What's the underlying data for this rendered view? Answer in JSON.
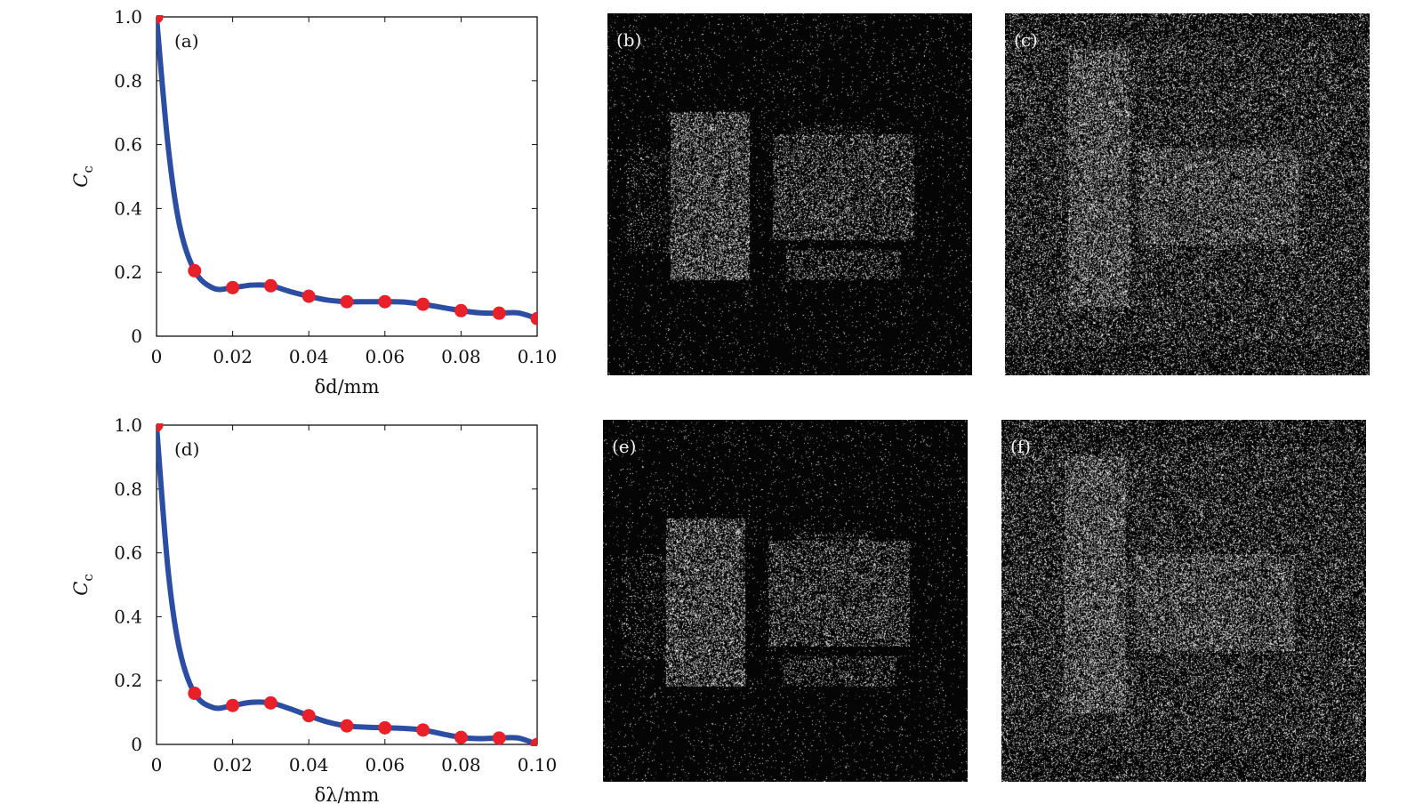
{
  "chart_data": [
    {
      "type": "line",
      "panel_label": "(a)",
      "xlabel": "δd/mm",
      "ylabel": "C",
      "ylabel_sub": "c",
      "xlim": [
        0,
        0.1
      ],
      "ylim": [
        0,
        1.0
      ],
      "xticks": [
        "0",
        "0.02",
        "0.04",
        "0.06",
        "0.08",
        "0.10"
      ],
      "yticks": [
        "0",
        "0.2",
        "0.4",
        "0.6",
        "0.8",
        "1.0"
      ],
      "grid": false,
      "series": [
        {
          "style": "smooth-curve",
          "color": "#2b4ea2",
          "x": [
            0,
            0.003,
            0.006,
            0.01,
            0.015,
            0.02,
            0.025,
            0.03,
            0.035,
            0.04,
            0.045,
            0.05,
            0.055,
            0.06,
            0.065,
            0.07,
            0.075,
            0.08,
            0.085,
            0.09,
            0.095,
            0.1
          ],
          "y": [
            1.0,
            0.6,
            0.35,
            0.205,
            0.15,
            0.152,
            0.16,
            0.158,
            0.14,
            0.125,
            0.113,
            0.108,
            0.108,
            0.108,
            0.107,
            0.1,
            0.09,
            0.08,
            0.073,
            0.072,
            0.073,
            0.055
          ]
        },
        {
          "style": "markers",
          "color": "#e8202a",
          "x": [
            0,
            0.01,
            0.02,
            0.03,
            0.04,
            0.05,
            0.06,
            0.07,
            0.08,
            0.09,
            0.1
          ],
          "y": [
            1.0,
            0.205,
            0.152,
            0.158,
            0.125,
            0.108,
            0.108,
            0.1,
            0.08,
            0.072,
            0.055
          ]
        }
      ]
    },
    {
      "type": "line",
      "panel_label": "(d)",
      "xlabel": "δλ/mm",
      "ylabel": "C",
      "ylabel_sub": "c",
      "xlim": [
        0,
        0.1
      ],
      "ylim": [
        0,
        1.0
      ],
      "xticks": [
        "0",
        "0.02",
        "0.04",
        "0.06",
        "0.08",
        "0.10"
      ],
      "yticks": [
        "0",
        "0.2",
        "0.4",
        "0.6",
        "0.8",
        "1.0"
      ],
      "grid": false,
      "series": [
        {
          "style": "smooth-curve",
          "color": "#2b4ea2",
          "x": [
            0,
            0.003,
            0.006,
            0.01,
            0.015,
            0.02,
            0.025,
            0.03,
            0.035,
            0.04,
            0.045,
            0.05,
            0.055,
            0.06,
            0.065,
            0.07,
            0.075,
            0.08,
            0.085,
            0.09,
            0.095,
            0.1
          ],
          "y": [
            1.0,
            0.55,
            0.3,
            0.16,
            0.115,
            0.122,
            0.132,
            0.13,
            0.112,
            0.09,
            0.07,
            0.058,
            0.054,
            0.052,
            0.05,
            0.045,
            0.033,
            0.022,
            0.018,
            0.02,
            0.02,
            0.0
          ]
        },
        {
          "style": "markers",
          "color": "#e8202a",
          "x": [
            0,
            0.01,
            0.02,
            0.03,
            0.04,
            0.05,
            0.06,
            0.07,
            0.08,
            0.09,
            0.1
          ],
          "y": [
            1.0,
            0.16,
            0.122,
            0.13,
            0.09,
            0.058,
            0.052,
            0.045,
            0.022,
            0.02,
            0.0
          ]
        }
      ]
    }
  ],
  "image_panels": [
    {
      "label": "(b)",
      "kind": "decrypted-noise-with-structure"
    },
    {
      "label": "(c)",
      "kind": "decrypted-noise"
    },
    {
      "label": "(e)",
      "kind": "decrypted-noise-with-structure"
    },
    {
      "label": "(f)",
      "kind": "decrypted-noise"
    }
  ],
  "colors": {
    "curve": "#2b4ea2",
    "marker": "#e8202a",
    "image_bg": "#050505"
  }
}
